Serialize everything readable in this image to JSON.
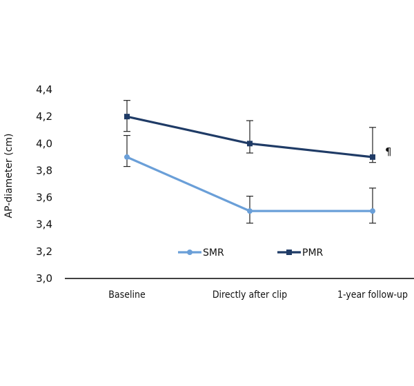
{
  "chart_data": {
    "type": "line",
    "title": "",
    "xlabel": "",
    "ylabel": "AP-diameter (cm)",
    "categories": [
      "Baseline",
      "Directly after clip",
      "1-year follow-up"
    ],
    "ylim": [
      3.0,
      4.4
    ],
    "yticks": [
      "3,0",
      "3,2",
      "3,4",
      "3,6",
      "3,8",
      "4,0",
      "4,2",
      "4,4"
    ],
    "series": [
      {
        "name": "SMR",
        "values": [
          3.9,
          3.5,
          3.5
        ],
        "error_low": [
          3.83,
          3.41,
          3.41
        ],
        "error_high": [
          4.06,
          3.61,
          3.67
        ],
        "color": "#6a9fd8",
        "marker": "circle"
      },
      {
        "name": "PMR",
        "values": [
          4.2,
          4.0,
          3.9
        ],
        "error_low": [
          4.09,
          3.93,
          3.86
        ],
        "error_high": [
          4.32,
          4.17,
          4.12
        ],
        "color": "#1f3b66",
        "marker": "square"
      }
    ],
    "annotation": "¶",
    "grid": false,
    "legend": "bottom-center"
  }
}
